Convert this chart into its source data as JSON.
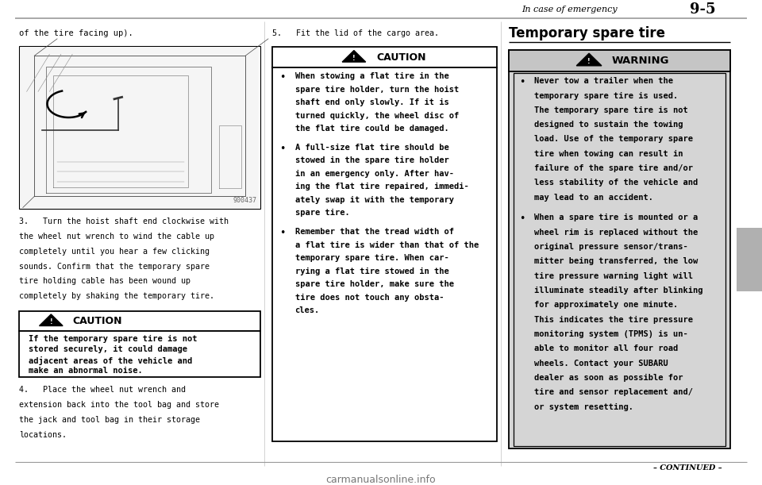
{
  "bg_color": "#ffffff",
  "page_width": 9.6,
  "page_height": 6.11,
  "header_text": "In case of emergency",
  "header_page": "9-5",
  "left_text": "of the tire facing up).",
  "img_number": "900437",
  "step3_lines": [
    "3.   Turn the hoist shaft end clockwise with",
    "the wheel nut wrench to wind the cable up",
    "completely until you hear a few clicking",
    "sounds. Confirm that the temporary spare",
    "tire holding cable has been wound up",
    "completely by shaking the temporary tire."
  ],
  "caution1_title": "CAUTION",
  "caution1_lines": [
    "If the temporary spare tire is not",
    "stored securely, it could damage",
    "adjacent areas of the vehicle and",
    "make an abnormal noise."
  ],
  "step4_lines": [
    "4.   Place the wheel nut wrench and",
    "extension back into the tool bag and store",
    "the jack and tool bag in their storage",
    "locations."
  ],
  "step5_text": "5.   Fit the lid of the cargo area.",
  "caution2_title": "CAUTION",
  "caution2_b1": [
    "When stowing a flat tire in the",
    "spare tire holder, turn the hoist",
    "shaft end only slowly. If it is",
    "turned quickly, the wheel disc of",
    "the flat tire could be damaged."
  ],
  "caution2_b2": [
    "A full-size flat tire should be",
    "stowed in the spare tire holder",
    "in an emergency only. After hav-",
    "ing the flat tire repaired, immedi-",
    "ately swap it with the temporary",
    "spare tire."
  ],
  "caution2_b3": [
    "Remember that the tread width of",
    "a flat tire is wider than that of the",
    "temporary spare tire. When car-",
    "rying a flat tire stowed in the",
    "spare tire holder, make sure the",
    "tire does not touch any obsta-",
    "cles."
  ],
  "right_title": "Temporary spare tire",
  "warning_title": "WARNING",
  "warn_b1": [
    "Never tow a trailer when the",
    "temporary spare tire is used.",
    "The temporary spare tire is not",
    "designed to sustain the towing",
    "load. Use of the temporary spare",
    "tire when towing can result in",
    "failure of the spare tire and/or",
    "less stability of the vehicle and",
    "may lead to an accident."
  ],
  "warn_b2": [
    "When a spare tire is mounted or a",
    "wheel rim is replaced without the",
    "original pressure sensor/trans-",
    "mitter being transferred, the low",
    "tire pressure warning light will",
    "illuminate steadily after blinking",
    "for approximately one minute.",
    "This indicates the tire pressure",
    "monitoring system (TPMS) is un-",
    "able to monitor all four road",
    "wheels. Contact your SUBARU",
    "dealer as soon as possible for",
    "tire and sensor replacement and/",
    "or system resetting."
  ],
  "continued_text": "– CONTINUED –",
  "watermark_text": "carmanualsonline.info",
  "sidebar_color": "#b0b0b0"
}
